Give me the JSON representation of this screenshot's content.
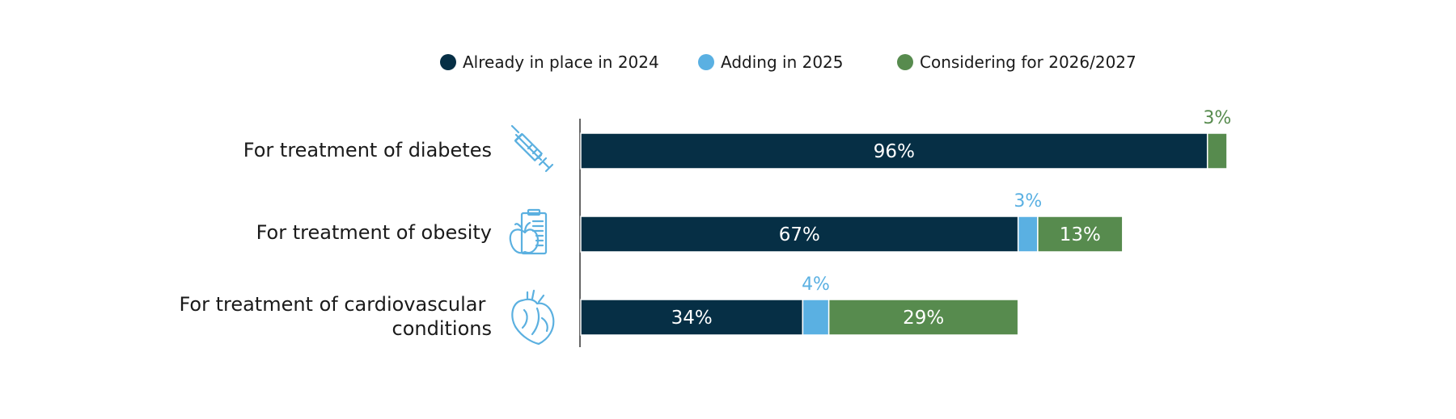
{
  "chart_data": {
    "type": "bar",
    "orientation": "horizontal",
    "stacked": true,
    "legend_position": "top",
    "categories": [
      [
        "For treatment of diabetes"
      ],
      [
        "For treatment of obesity"
      ],
      [
        "For treatment of cardiovascular",
        "conditions"
      ]
    ],
    "icons": [
      "syringe-icon",
      "clipboard-apple-icon",
      "heart-icon"
    ],
    "series": [
      {
        "name": "Already in place in 2024",
        "color": "#062f45",
        "values": [
          96,
          67,
          34
        ]
      },
      {
        "name": "Adding in 2025",
        "color": "#5ab0e2",
        "values": [
          null,
          3,
          4
        ]
      },
      {
        "name": "Considering for 2026/2027",
        "color": "#578b4e",
        "values": [
          3,
          13,
          29
        ]
      }
    ],
    "unit": "%",
    "xlim": [
      0,
      100
    ],
    "grid": false
  }
}
